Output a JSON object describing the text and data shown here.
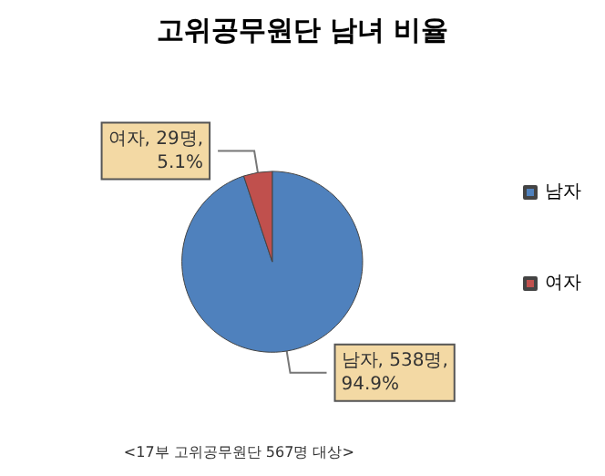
{
  "chart_data": {
    "type": "pie",
    "title": "고위공무원단 남녀 비율",
    "categories": [
      "남자",
      "여자"
    ],
    "values": [
      538,
      29
    ],
    "colors": [
      "#4f81bd",
      "#c0504d"
    ],
    "value_labels": [
      "남자, 538명,\n94.9%",
      "여자, 29명,\n5.1%"
    ],
    "legend": "right",
    "annotations": [
      "<17부 고위공무원단 567명 대상>"
    ]
  }
}
